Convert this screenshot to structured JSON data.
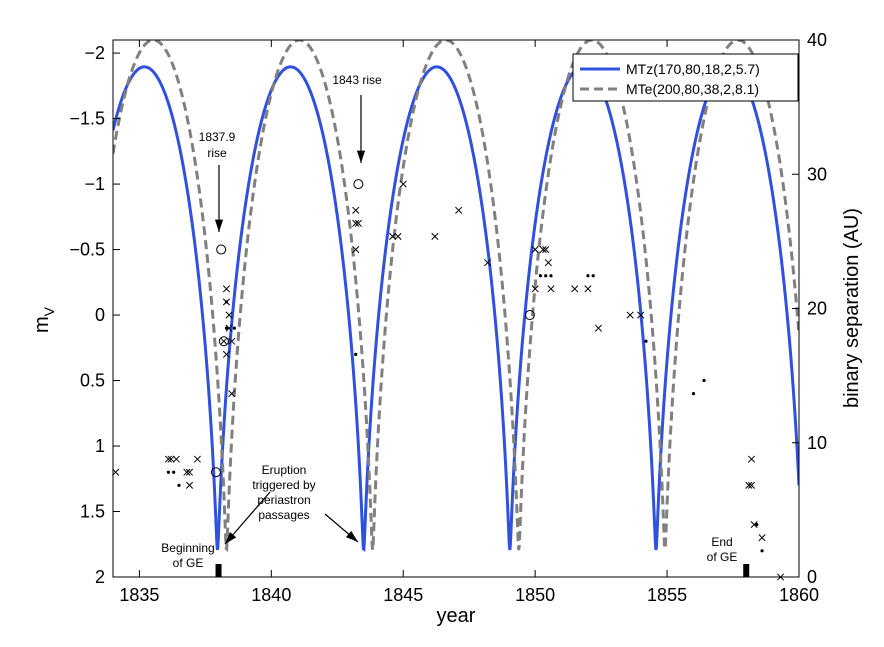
{
  "chart_data": {
    "type": "line",
    "xlabel": "year",
    "ylabel": "m",
    "ylabel_sub": "V",
    "y2label": "binary separation (AU)",
    "xlim": [
      1834,
      1860
    ],
    "ylim": [
      2,
      -2.1
    ],
    "y2lim": [
      0,
      40
    ],
    "x_ticks": [
      1835,
      1840,
      1845,
      1850,
      1855,
      1860
    ],
    "y_ticks": [
      2,
      1.5,
      1,
      0.5,
      0,
      -0.5,
      -1,
      -1.5,
      -2
    ],
    "y_tick_labels": [
      "2",
      "1.5",
      "1",
      "0.5",
      "0",
      "−0.5",
      "−1",
      "−1.5",
      "−2"
    ],
    "y2_ticks": [
      0,
      10,
      20,
      30,
      40
    ],
    "legend_position": "top-right",
    "series": [
      {
        "name": "MTz(170,80,18,2,5.7)",
        "style": "solid",
        "color": "#3050e0",
        "period": 5.54,
        "periastron": 1837.96,
        "sep_min": 2,
        "sep_max": 38
      },
      {
        "name": "MTe(200,80,38,2,8.1)",
        "style": "dashed",
        "color": "#808080",
        "period": 5.54,
        "periastron": 1838.3,
        "sep_min": 2,
        "sep_max": 40
      }
    ],
    "obs_cross": [
      [
        1834.1,
        1.2
      ],
      [
        1836.1,
        1.1
      ],
      [
        1836.2,
        1.1
      ],
      [
        1836.4,
        1.1
      ],
      [
        1836.8,
        1.2
      ],
      [
        1836.9,
        1.2
      ],
      [
        1836.9,
        1.3
      ],
      [
        1837.2,
        1.1
      ],
      [
        1838.3,
        -0.2
      ],
      [
        1838.3,
        -0.1
      ],
      [
        1838.4,
        0.0
      ],
      [
        1838.4,
        0.1
      ],
      [
        1838.5,
        0.2
      ],
      [
        1838.3,
        0.3
      ],
      [
        1838.5,
        0.6
      ],
      [
        1843.2,
        -0.8
      ],
      [
        1843.2,
        -0.7
      ],
      [
        1843.3,
        -0.7
      ],
      [
        1843.2,
        -0.5
      ],
      [
        1844.6,
        -0.6
      ],
      [
        1844.8,
        -0.6
      ],
      [
        1845.0,
        -1.0
      ],
      [
        1846.2,
        -0.6
      ],
      [
        1847.1,
        -0.8
      ],
      [
        1848.2,
        -0.4
      ],
      [
        1850.0,
        -0.5
      ],
      [
        1850.3,
        -0.5
      ],
      [
        1850.4,
        -0.5
      ],
      [
        1850.5,
        -0.4
      ],
      [
        1850.0,
        -0.2
      ],
      [
        1850.6,
        -0.2
      ],
      [
        1851.5,
        -0.2
      ],
      [
        1852.0,
        -0.2
      ],
      [
        1852.4,
        0.1
      ],
      [
        1853.6,
        0.0
      ],
      [
        1854.0,
        0.0
      ],
      [
        1858.2,
        1.1
      ],
      [
        1858.1,
        1.3
      ],
      [
        1858.2,
        1.3
      ],
      [
        1858.3,
        1.6
      ],
      [
        1858.6,
        1.7
      ],
      [
        1859.3,
        2.0
      ]
    ],
    "obs_dot": [
      [
        1836.1,
        1.2
      ],
      [
        1836.3,
        1.2
      ],
      [
        1836.5,
        1.3
      ],
      [
        1838.3,
        -0.1
      ],
      [
        1838.3,
        0.1
      ],
      [
        1838.6,
        0.1
      ],
      [
        1843.2,
        0.3
      ],
      [
        1850.2,
        -0.3
      ],
      [
        1850.4,
        -0.3
      ],
      [
        1850.6,
        -0.3
      ],
      [
        1852.0,
        -0.3
      ],
      [
        1852.2,
        -0.3
      ],
      [
        1854.2,
        0.2
      ],
      [
        1856.0,
        0.6
      ],
      [
        1856.4,
        0.5
      ],
      [
        1858.4,
        1.6
      ],
      [
        1858.6,
        1.8
      ]
    ],
    "obs_circle": [
      [
        1838.1,
        -0.5
      ],
      [
        1837.9,
        1.2
      ],
      [
        1843.3,
        -1.0
      ],
      [
        1849.8,
        0.0
      ]
    ],
    "obs_otimes": [
      [
        1838.2,
        0.2
      ]
    ],
    "event_markers": [
      1838.0,
      1858.0
    ],
    "annotations": [
      {
        "id": "rise1837",
        "lines": [
          "1837.9",
          "rise"
        ]
      },
      {
        "id": "rise1843",
        "lines": [
          "1843 rise"
        ]
      },
      {
        "id": "eruption",
        "lines": [
          "Eruption",
          "triggered by",
          "periastron",
          "passages"
        ]
      },
      {
        "id": "beginning",
        "lines": [
          "Beginning",
          "of GE"
        ]
      },
      {
        "id": "end",
        "lines": [
          "End",
          "of GE"
        ]
      }
    ]
  }
}
